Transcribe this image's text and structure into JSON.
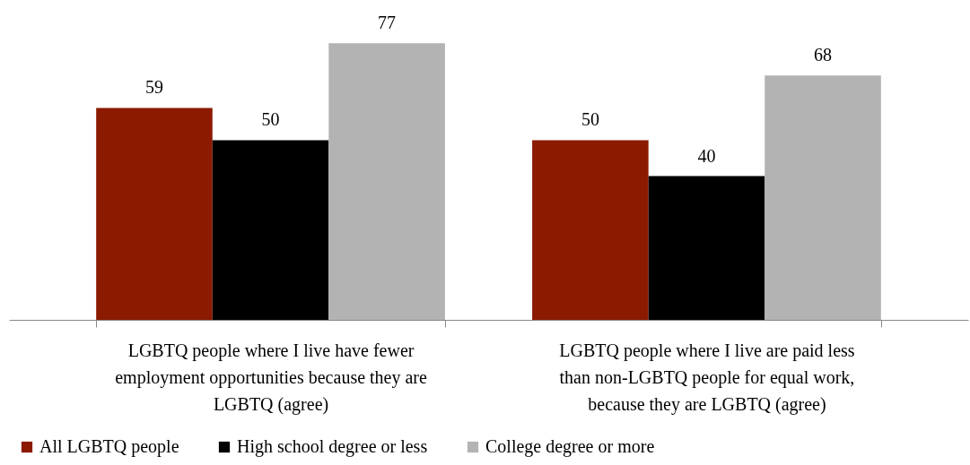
{
  "chart_data": {
    "type": "bar",
    "categories": [
      "LGBTQ people where I live have fewer employment opportunities because they are LGBTQ (agree)",
      "LGBTQ people where I live are paid less than non-LGBTQ people for equal work, because they are LGBTQ (agree)"
    ],
    "series": [
      {
        "name": "All LGBTQ people",
        "color": "#8b1a00",
        "values": [
          59,
          50
        ]
      },
      {
        "name": "High school degree or less",
        "color": "#000000",
        "values": [
          50,
          40
        ]
      },
      {
        "name": "College degree or more",
        "color": "#b3b3b3",
        "values": [
          77,
          68
        ]
      }
    ],
    "data_labels": true,
    "legend": "bottom",
    "grid": false
  }
}
